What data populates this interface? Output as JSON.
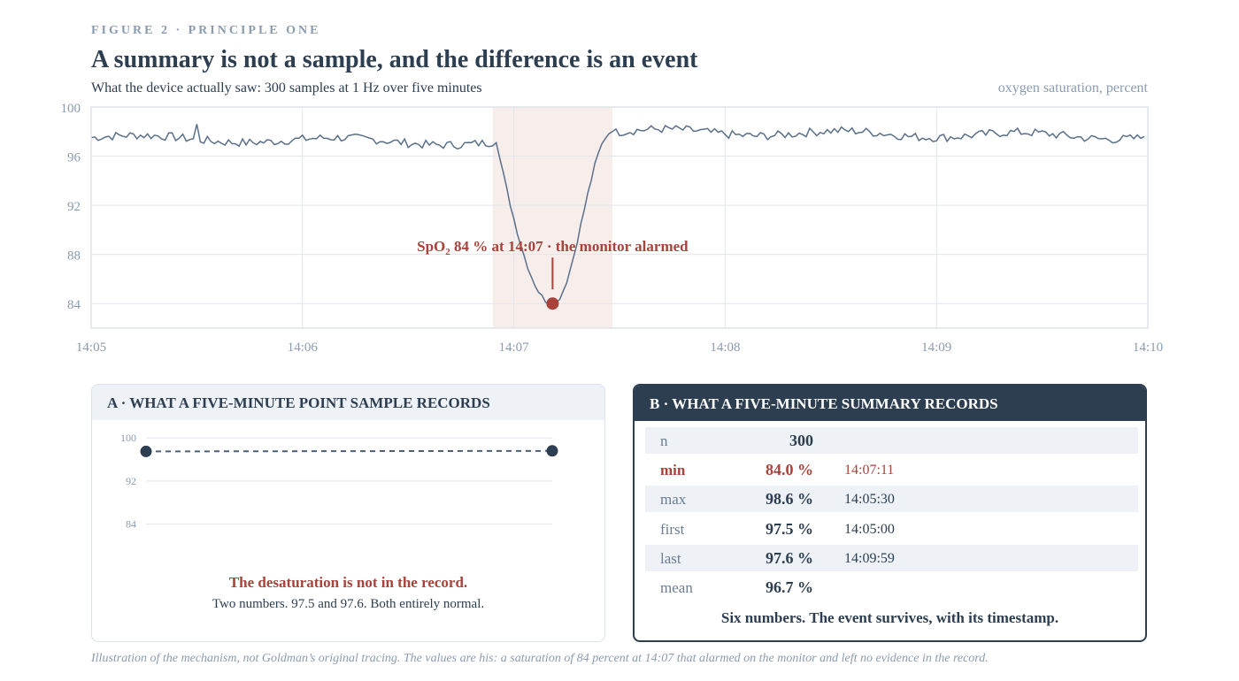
{
  "header": {
    "kicker": "FIGURE 2 · PRINCIPLE ONE",
    "title": "A summary is not a sample, and the difference is an event",
    "subtitle": "What the device actually saw: 300 samples at 1 Hz over five minutes",
    "unit_label": "oxygen saturation, percent"
  },
  "colors": {
    "ink": "#2c3e50",
    "muted": "#8a9bb0",
    "alert": "#a8423a",
    "series": "#5a7089",
    "band": "#f7eeec"
  },
  "chart_data": [
    {
      "type": "line",
      "title": "",
      "xlabel": "",
      "ylabel": "oxygen saturation, percent",
      "x_ticks": [
        "14:05",
        "14:06",
        "14:07",
        "14:08",
        "14:09",
        "14:10"
      ],
      "y_ticks": [
        100,
        96,
        92,
        88,
        84
      ],
      "xlim": [
        "14:05:00",
        "14:10:00"
      ],
      "ylim": [
        82,
        100
      ],
      "grid": true,
      "sample_rate_hz": 1,
      "n_samples": 300,
      "series": [
        {
          "baseline_before_start": 97.5,
          "baseline_before_end": 97.1,
          "baseline_after_start": 98.0,
          "baseline_after_end": 97.6,
          "noise_amplitude": 0.35,
          "keypoints": [
            {
              "t": "14:05:00",
              "v": 97.5
            },
            {
              "t": "14:05:30",
              "v": 98.6
            },
            {
              "t": "14:06:55",
              "v": 97.1
            },
            {
              "t": "14:07:11",
              "v": 84.0
            },
            {
              "t": "14:07:28",
              "v": 98.0
            },
            {
              "t": "14:09:59",
              "v": 97.6
            }
          ]
        }
      ],
      "highlight_band": {
        "start": "14:06:54",
        "end": "14:07:28"
      },
      "annotation": {
        "point": {
          "t": "14:07:11",
          "v": 84.0
        },
        "label_pre": "SpO",
        "label_sub": "2",
        "label_post": " 84 % at 14:07 · the monitor alarmed"
      }
    },
    {
      "type": "line",
      "title": "",
      "y_ticks": [
        100,
        92,
        84
      ],
      "ylim": [
        80,
        102
      ],
      "grid": true,
      "points": [
        {
          "t": "14:05",
          "v": 97.5
        },
        {
          "t": "14:10",
          "v": 97.6
        }
      ]
    }
  ],
  "panel_a": {
    "title": "A · WHAT A FIVE-MINUTE POINT SAMPLE RECORDS",
    "message_strong": "The desaturation is not in the record.",
    "message": "Two numbers. 97.5 and 97.6. Both entirely normal."
  },
  "panel_b": {
    "title": "B · WHAT A FIVE-MINUTE SUMMARY RECORDS",
    "rows": [
      {
        "key": "n",
        "value": "300",
        "time": ""
      },
      {
        "key": "min",
        "value": "84.0 %",
        "time": "14:07:11"
      },
      {
        "key": "max",
        "value": "98.6 %",
        "time": "14:05:30"
      },
      {
        "key": "first",
        "value": "97.5 %",
        "time": "14:05:00"
      },
      {
        "key": "last",
        "value": "97.6 %",
        "time": "14:09:59"
      },
      {
        "key": "mean",
        "value": "96.7 %",
        "time": ""
      }
    ],
    "message": "Six numbers. The event survives, with its timestamp."
  },
  "caption": "Illustration of the mechanism, not Goldman’s original tracing. The values are his: a saturation of 84 percent at 14:07 that alarmed on the monitor and left no evidence in the record."
}
